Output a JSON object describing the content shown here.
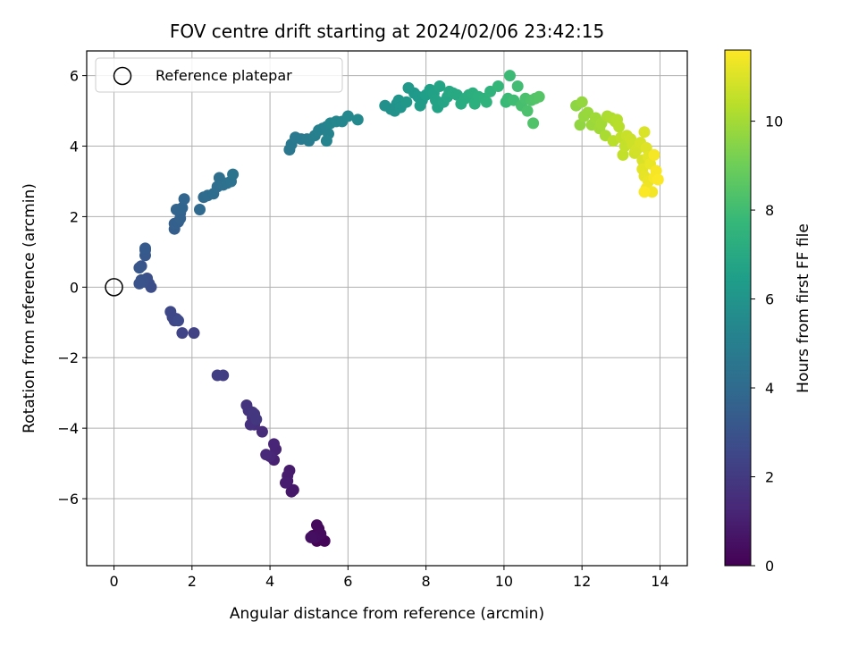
{
  "chart_data": {
    "type": "scatter",
    "title": "FOV centre drift starting at 2024/02/06 23:42:15",
    "xlabel": "Angular distance from reference (arcmin)",
    "ylabel": "Rotation from reference (arcmin)",
    "xlim": [
      -0.7,
      14.7
    ],
    "ylim": [
      -7.9,
      6.7
    ],
    "xticks": [
      0,
      2,
      4,
      6,
      8,
      10,
      12,
      14
    ],
    "yticks": [
      -6,
      -4,
      -2,
      0,
      2,
      4,
      6
    ],
    "xtick_labels": [
      "0",
      "2",
      "4",
      "6",
      "8",
      "10",
      "12",
      "14"
    ],
    "ytick_labels": [
      "−6",
      "−4",
      "−2",
      "0",
      "2",
      "4",
      "6"
    ],
    "grid": true,
    "legend": {
      "position": "upper-left",
      "entries": [
        "Reference platepar"
      ]
    },
    "reference_point": {
      "x": 0,
      "y": 0
    },
    "colorbar": {
      "label": "Hours from first FF file",
      "min": 0,
      "max": 11.6,
      "ticks": [
        0,
        2,
        4,
        6,
        8,
        10
      ],
      "tick_labels": [
        "0",
        "2",
        "4",
        "6",
        "8",
        "10"
      ],
      "colormap": "viridis",
      "colors": [
        "#440154",
        "#482878",
        "#3e4989",
        "#31688e",
        "#26828e",
        "#1f9e89",
        "#35b779",
        "#6ece58",
        "#b5de2b",
        "#fde725"
      ]
    },
    "series": [
      {
        "points": [
          [
            5.2,
            -7.2,
            0.05
          ],
          [
            5.3,
            -7.1,
            0.1
          ],
          [
            5.4,
            -7.2,
            0.15
          ],
          [
            5.1,
            -7.05,
            0.2
          ],
          [
            5.25,
            -6.85,
            0.25
          ],
          [
            5.2,
            -6.75,
            0.3
          ],
          [
            5.3,
            -7.0,
            0.35
          ],
          [
            5.15,
            -7.1,
            0.4
          ],
          [
            5.05,
            -7.1,
            0.45
          ],
          [
            4.6,
            -5.75,
            0.7
          ],
          [
            4.55,
            -5.8,
            0.75
          ],
          [
            4.45,
            -5.5,
            0.8
          ],
          [
            4.5,
            -5.2,
            0.85
          ],
          [
            4.45,
            -5.35,
            0.9
          ],
          [
            4.4,
            -5.55,
            0.95
          ],
          [
            4.1,
            -4.9,
            1.1
          ],
          [
            4.15,
            -4.6,
            1.15
          ],
          [
            4.1,
            -4.45,
            1.2
          ],
          [
            4.0,
            -4.8,
            1.25
          ],
          [
            3.9,
            -4.75,
            1.3
          ],
          [
            3.8,
            -4.1,
            1.45
          ],
          [
            3.6,
            -3.9,
            1.55
          ],
          [
            3.55,
            -3.7,
            1.6
          ],
          [
            3.5,
            -3.9,
            1.65
          ],
          [
            3.45,
            -3.5,
            1.7
          ],
          [
            3.4,
            -3.35,
            1.75
          ],
          [
            3.55,
            -3.55,
            1.8
          ],
          [
            3.6,
            -3.6,
            1.85
          ],
          [
            3.65,
            -3.75,
            1.9
          ],
          [
            2.8,
            -2.5,
            2.1
          ],
          [
            2.65,
            -2.5,
            2.15
          ],
          [
            2.05,
            -1.3,
            2.3
          ],
          [
            1.75,
            -1.3,
            2.35
          ],
          [
            1.6,
            -0.9,
            2.4
          ],
          [
            1.55,
            -0.95,
            2.45
          ],
          [
            1.5,
            -0.85,
            2.5
          ],
          [
            1.45,
            -0.7,
            2.55
          ],
          [
            1.65,
            -0.95,
            2.6
          ],
          [
            0.95,
            0.0,
            2.75
          ],
          [
            0.9,
            0.1,
            2.8
          ],
          [
            0.85,
            0.25,
            2.85
          ],
          [
            0.75,
            0.15,
            2.9
          ],
          [
            0.7,
            0.2,
            2.95
          ],
          [
            0.65,
            0.1,
            3.0
          ],
          [
            0.7,
            0.6,
            3.05
          ],
          [
            0.65,
            0.55,
            3.1
          ],
          [
            0.8,
            0.9,
            3.2
          ],
          [
            0.8,
            1.05,
            3.25
          ],
          [
            0.8,
            1.1,
            3.3
          ],
          [
            1.55,
            1.65,
            3.45
          ],
          [
            1.55,
            1.8,
            3.5
          ],
          [
            1.65,
            1.85,
            3.55
          ],
          [
            1.7,
            1.95,
            3.6
          ],
          [
            1.7,
            2.1,
            3.65
          ],
          [
            1.6,
            2.2,
            3.7
          ],
          [
            1.75,
            2.25,
            3.75
          ],
          [
            1.8,
            2.5,
            3.8
          ],
          [
            2.2,
            2.2,
            3.95
          ],
          [
            2.3,
            2.55,
            4.0
          ],
          [
            2.4,
            2.6,
            4.05
          ],
          [
            2.55,
            2.65,
            4.1
          ],
          [
            2.65,
            2.85,
            4.15
          ],
          [
            2.7,
            3.1,
            4.2
          ],
          [
            2.8,
            2.9,
            4.25
          ],
          [
            2.9,
            2.95,
            4.3
          ],
          [
            3.0,
            3.0,
            4.35
          ],
          [
            3.05,
            3.2,
            4.4
          ],
          [
            4.5,
            3.9,
            4.6
          ],
          [
            4.55,
            4.05,
            4.65
          ],
          [
            4.65,
            4.25,
            4.7
          ],
          [
            4.8,
            4.2,
            4.75
          ],
          [
            4.95,
            4.2,
            4.8
          ],
          [
            5.0,
            4.15,
            4.85
          ],
          [
            5.15,
            4.3,
            5.0
          ],
          [
            5.25,
            4.45,
            5.05
          ],
          [
            5.35,
            4.5,
            5.1
          ],
          [
            5.45,
            4.55,
            5.15
          ],
          [
            5.5,
            4.35,
            5.2
          ],
          [
            5.45,
            4.15,
            5.25
          ],
          [
            5.55,
            4.65,
            5.3
          ],
          [
            5.7,
            4.7,
            5.35
          ],
          [
            5.85,
            4.7,
            5.4
          ],
          [
            6.0,
            4.85,
            5.45
          ],
          [
            6.25,
            4.75,
            5.5
          ],
          [
            6.95,
            5.15,
            5.8
          ],
          [
            7.1,
            5.05,
            5.85
          ],
          [
            7.2,
            5.0,
            5.9
          ],
          [
            7.25,
            5.2,
            5.95
          ],
          [
            7.3,
            5.3,
            6.0
          ],
          [
            7.35,
            5.1,
            6.05
          ],
          [
            7.5,
            5.25,
            6.1
          ],
          [
            7.55,
            5.65,
            6.15
          ],
          [
            7.7,
            5.5,
            6.2
          ],
          [
            7.8,
            5.4,
            6.25
          ],
          [
            7.9,
            5.3,
            6.3
          ],
          [
            7.85,
            5.15,
            6.35
          ],
          [
            8.0,
            5.45,
            6.5
          ],
          [
            8.1,
            5.6,
            6.55
          ],
          [
            8.2,
            5.5,
            6.6
          ],
          [
            8.25,
            5.3,
            6.65
          ],
          [
            8.3,
            5.1,
            6.7
          ],
          [
            8.35,
            5.7,
            6.75
          ],
          [
            8.45,
            5.25,
            6.8
          ],
          [
            8.55,
            5.4,
            6.85
          ],
          [
            8.6,
            5.55,
            6.9
          ],
          [
            8.7,
            5.5,
            6.95
          ],
          [
            8.8,
            5.45,
            7.0
          ],
          [
            8.9,
            5.2,
            7.1
          ],
          [
            9.0,
            5.35,
            7.15
          ],
          [
            9.1,
            5.45,
            7.2
          ],
          [
            9.2,
            5.5,
            7.25
          ],
          [
            9.25,
            5.2,
            7.3
          ],
          [
            9.35,
            5.4,
            7.35
          ],
          [
            9.5,
            5.35,
            7.4
          ],
          [
            9.55,
            5.25,
            7.45
          ],
          [
            9.65,
            5.55,
            7.5
          ],
          [
            9.85,
            5.7,
            7.7
          ],
          [
            10.05,
            5.25,
            7.8
          ],
          [
            10.1,
            5.35,
            7.85
          ],
          [
            10.15,
            6.0,
            7.9
          ],
          [
            10.25,
            5.3,
            7.95
          ],
          [
            10.35,
            5.7,
            8.0
          ],
          [
            10.45,
            5.15,
            8.15
          ],
          [
            10.55,
            5.35,
            8.2
          ],
          [
            10.6,
            5.0,
            8.25
          ],
          [
            10.7,
            5.3,
            8.3
          ],
          [
            10.75,
            4.65,
            8.35
          ],
          [
            10.8,
            5.35,
            8.4
          ],
          [
            10.9,
            5.4,
            8.45
          ],
          [
            11.85,
            5.15,
            9.6
          ],
          [
            11.95,
            4.6,
            9.65
          ],
          [
            12.0,
            5.25,
            9.7
          ],
          [
            12.05,
            4.85,
            9.75
          ],
          [
            12.15,
            4.95,
            9.8
          ],
          [
            12.25,
            4.6,
            9.85
          ],
          [
            12.35,
            4.8,
            9.9
          ],
          [
            12.45,
            4.5,
            9.95
          ],
          [
            12.5,
            4.65,
            10.0
          ],
          [
            12.6,
            4.3,
            10.1
          ],
          [
            12.65,
            4.85,
            10.15
          ],
          [
            12.75,
            4.8,
            10.2
          ],
          [
            12.85,
            4.7,
            10.25
          ],
          [
            12.9,
            4.75,
            10.3
          ],
          [
            12.95,
            4.55,
            10.35
          ],
          [
            12.8,
            4.15,
            10.4
          ],
          [
            13.0,
            4.25,
            10.5
          ],
          [
            13.05,
            3.75,
            10.55
          ],
          [
            13.1,
            4.0,
            10.6
          ],
          [
            13.15,
            4.3,
            10.65
          ],
          [
            13.25,
            4.2,
            10.7
          ],
          [
            13.3,
            4.05,
            10.75
          ],
          [
            13.35,
            3.8,
            10.8
          ],
          [
            13.4,
            3.9,
            10.85
          ],
          [
            13.5,
            4.1,
            10.9
          ],
          [
            13.55,
            3.6,
            10.95
          ],
          [
            13.6,
            4.4,
            11.0
          ],
          [
            13.65,
            3.95,
            11.05
          ],
          [
            13.7,
            3.7,
            11.1
          ],
          [
            13.55,
            3.35,
            11.15
          ],
          [
            13.6,
            3.15,
            11.2
          ],
          [
            13.75,
            3.5,
            11.25
          ],
          [
            13.7,
            3.0,
            11.3
          ],
          [
            13.65,
            2.8,
            11.35
          ],
          [
            13.8,
            2.7,
            11.4
          ],
          [
            13.85,
            3.1,
            11.45
          ],
          [
            13.9,
            3.3,
            11.5
          ],
          [
            13.95,
            3.05,
            11.55
          ],
          [
            13.6,
            2.7,
            11.55
          ],
          [
            13.85,
            3.75,
            11.45
          ]
        ]
      }
    ]
  }
}
